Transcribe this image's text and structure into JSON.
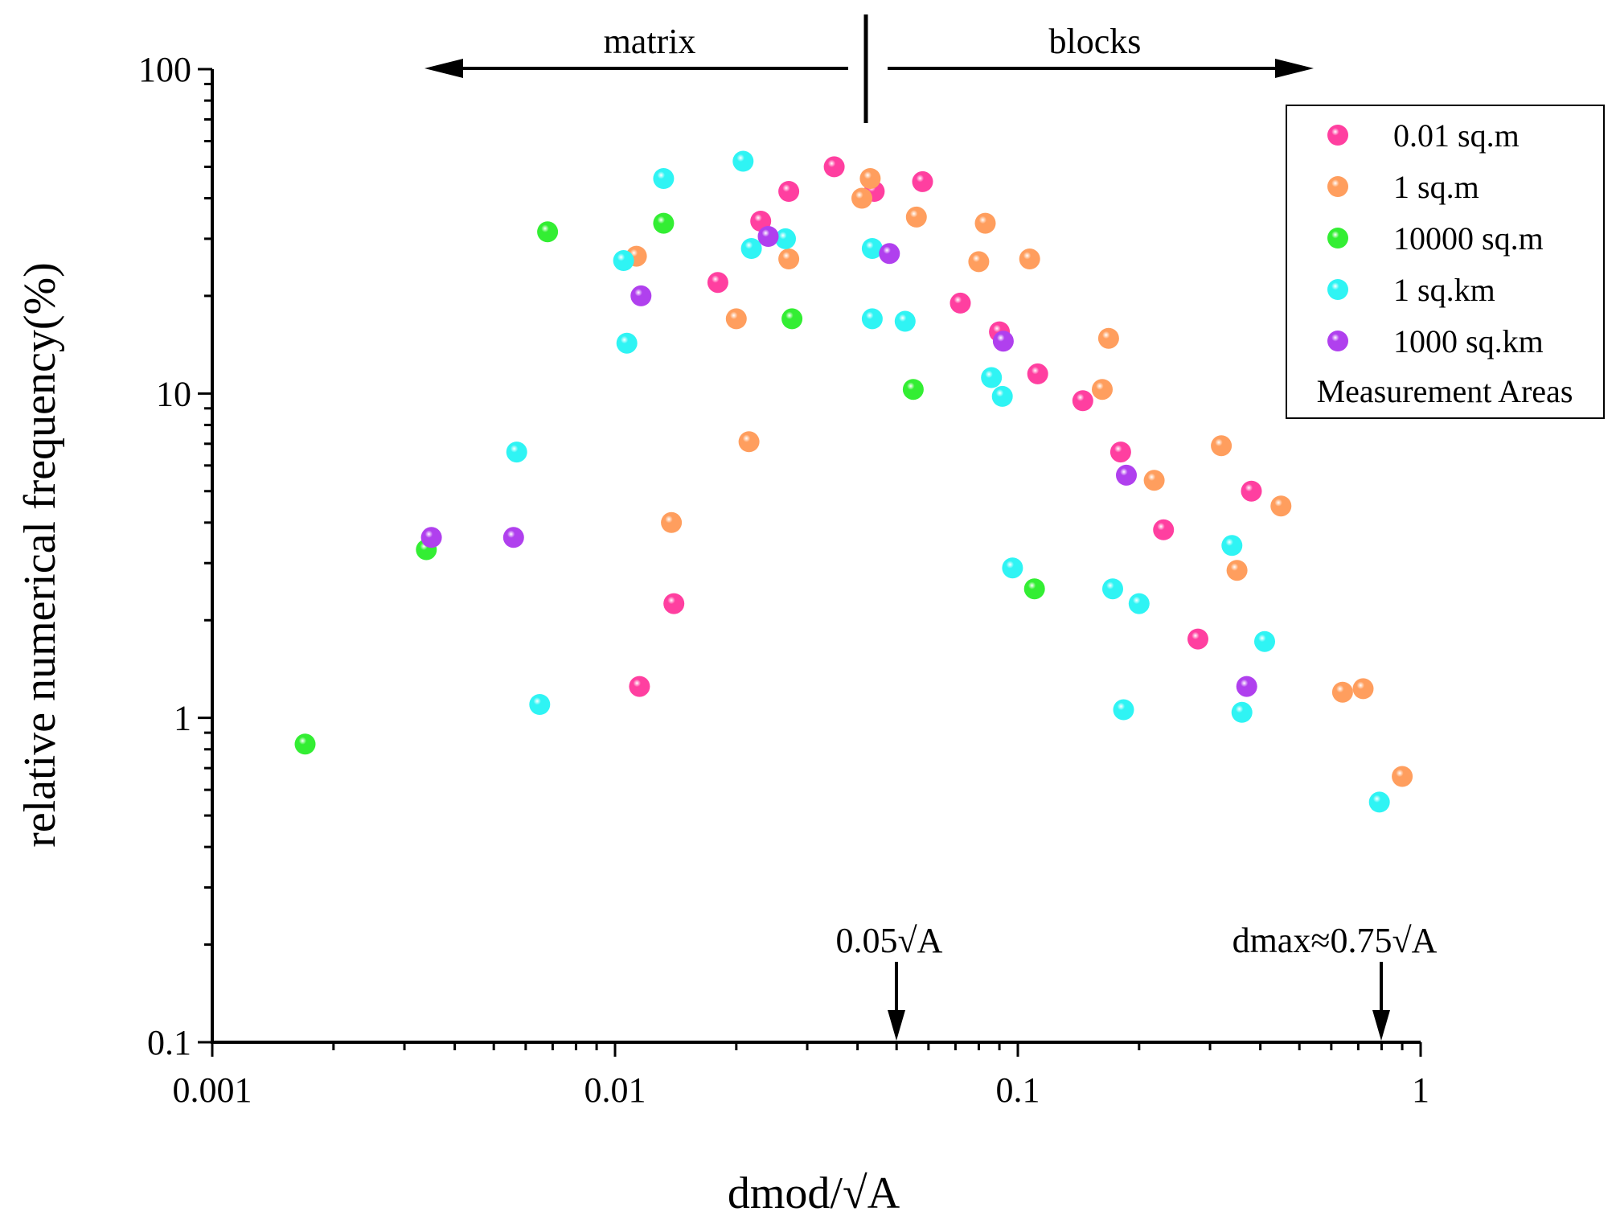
{
  "chart_data": {
    "type": "scatter",
    "title": "",
    "xlabel": "dmod/√A",
    "ylabel": "relative numerical frequency(%)",
    "xscale": "log",
    "yscale": "log",
    "xlim": [
      0.001,
      1
    ],
    "ylim": [
      0.1,
      100
    ],
    "x_ticks": [
      {
        "value": 0.001,
        "label": "0.001"
      },
      {
        "value": 0.01,
        "label": "0.01"
      },
      {
        "value": 0.1,
        "label": "0.1"
      },
      {
        "value": 1,
        "label": "1"
      }
    ],
    "y_ticks": [
      {
        "value": 0.1,
        "label": "0.1"
      },
      {
        "value": 1,
        "label": "1"
      },
      {
        "value": 10,
        "label": "10"
      },
      {
        "value": 100,
        "label": "100"
      }
    ],
    "legend": {
      "title": "Measurement Areas",
      "position": "top-right"
    },
    "annotations": {
      "matrix_label": "matrix",
      "blocks_label": "blocks",
      "divider_x": 0.042,
      "matrix_arrow_from": 0.04,
      "matrix_arrow_to": 0.0033,
      "blocks_arrow_from": 0.045,
      "blocks_arrow_to": 0.6,
      "marker_1": {
        "label": "0.05√A",
        "x": 0.05
      },
      "marker_2": {
        "label": "dmax≈0.75√A",
        "x": 0.8
      }
    },
    "series": [
      {
        "name": "0.01 sq.m",
        "color": "#ff3fa0",
        "points": [
          [
            0.035,
            50
          ],
          [
            0.044,
            42
          ],
          [
            0.058,
            45
          ],
          [
            0.027,
            42
          ],
          [
            0.023,
            34
          ],
          [
            0.018,
            22
          ],
          [
            0.072,
            19
          ],
          [
            0.09,
            15.5
          ],
          [
            0.112,
            11.5
          ],
          [
            0.145,
            9.5
          ],
          [
            0.18,
            6.6
          ],
          [
            0.38,
            5.0
          ],
          [
            0.23,
            3.8
          ],
          [
            0.28,
            1.75
          ],
          [
            0.014,
            2.25
          ],
          [
            0.0115,
            1.25
          ]
        ]
      },
      {
        "name": "1 sq.m",
        "color": "#ff9e5e",
        "points": [
          [
            0.0113,
            26.5
          ],
          [
            0.043,
            46
          ],
          [
            0.041,
            40
          ],
          [
            0.027,
            26
          ],
          [
            0.02,
            17
          ],
          [
            0.056,
            35
          ],
          [
            0.083,
            33.5
          ],
          [
            0.08,
            25.5
          ],
          [
            0.107,
            26
          ],
          [
            0.168,
            14.8
          ],
          [
            0.162,
            10.3
          ],
          [
            0.32,
            6.9
          ],
          [
            0.218,
            5.4
          ],
          [
            0.45,
            4.5
          ],
          [
            0.35,
            2.85
          ],
          [
            0.0215,
            7.1
          ],
          [
            0.0138,
            4.0
          ],
          [
            0.64,
            1.2
          ],
          [
            0.72,
            1.23
          ],
          [
            0.9,
            0.66
          ]
        ]
      },
      {
        "name": "10000 sq.m",
        "color": "#33ee33",
        "points": [
          [
            0.0068,
            31.5
          ],
          [
            0.0132,
            33.5
          ],
          [
            0.0275,
            17
          ],
          [
            0.055,
            10.3
          ],
          [
            0.0034,
            3.3
          ],
          [
            0.11,
            2.5
          ],
          [
            0.0017,
            0.83
          ]
        ]
      },
      {
        "name": "1 sq.km",
        "color": "#2ff4f4",
        "points": [
          [
            0.0208,
            52
          ],
          [
            0.0132,
            46
          ],
          [
            0.0265,
            30
          ],
          [
            0.0218,
            28
          ],
          [
            0.0435,
            28
          ],
          [
            0.0105,
            25.7
          ],
          [
            0.0435,
            17
          ],
          [
            0.0525,
            16.7
          ],
          [
            0.0107,
            14.3
          ],
          [
            0.086,
            11.2
          ],
          [
            0.0915,
            9.8
          ],
          [
            0.0057,
            6.6
          ],
          [
            0.097,
            2.9
          ],
          [
            0.172,
            2.5
          ],
          [
            0.2,
            2.25
          ],
          [
            0.34,
            3.4
          ],
          [
            0.41,
            1.72
          ],
          [
            0.0065,
            1.1
          ],
          [
            0.183,
            1.06
          ],
          [
            0.36,
            1.04
          ],
          [
            0.79,
            0.55
          ]
        ]
      },
      {
        "name": "1000 sq.km",
        "color": "#b040ee",
        "points": [
          [
            0.024,
            30.5
          ],
          [
            0.048,
            27
          ],
          [
            0.0116,
            20
          ],
          [
            0.092,
            14.5
          ],
          [
            0.186,
            5.6
          ],
          [
            0.0035,
            3.6
          ],
          [
            0.0056,
            3.6
          ],
          [
            0.37,
            1.25
          ]
        ]
      }
    ]
  }
}
